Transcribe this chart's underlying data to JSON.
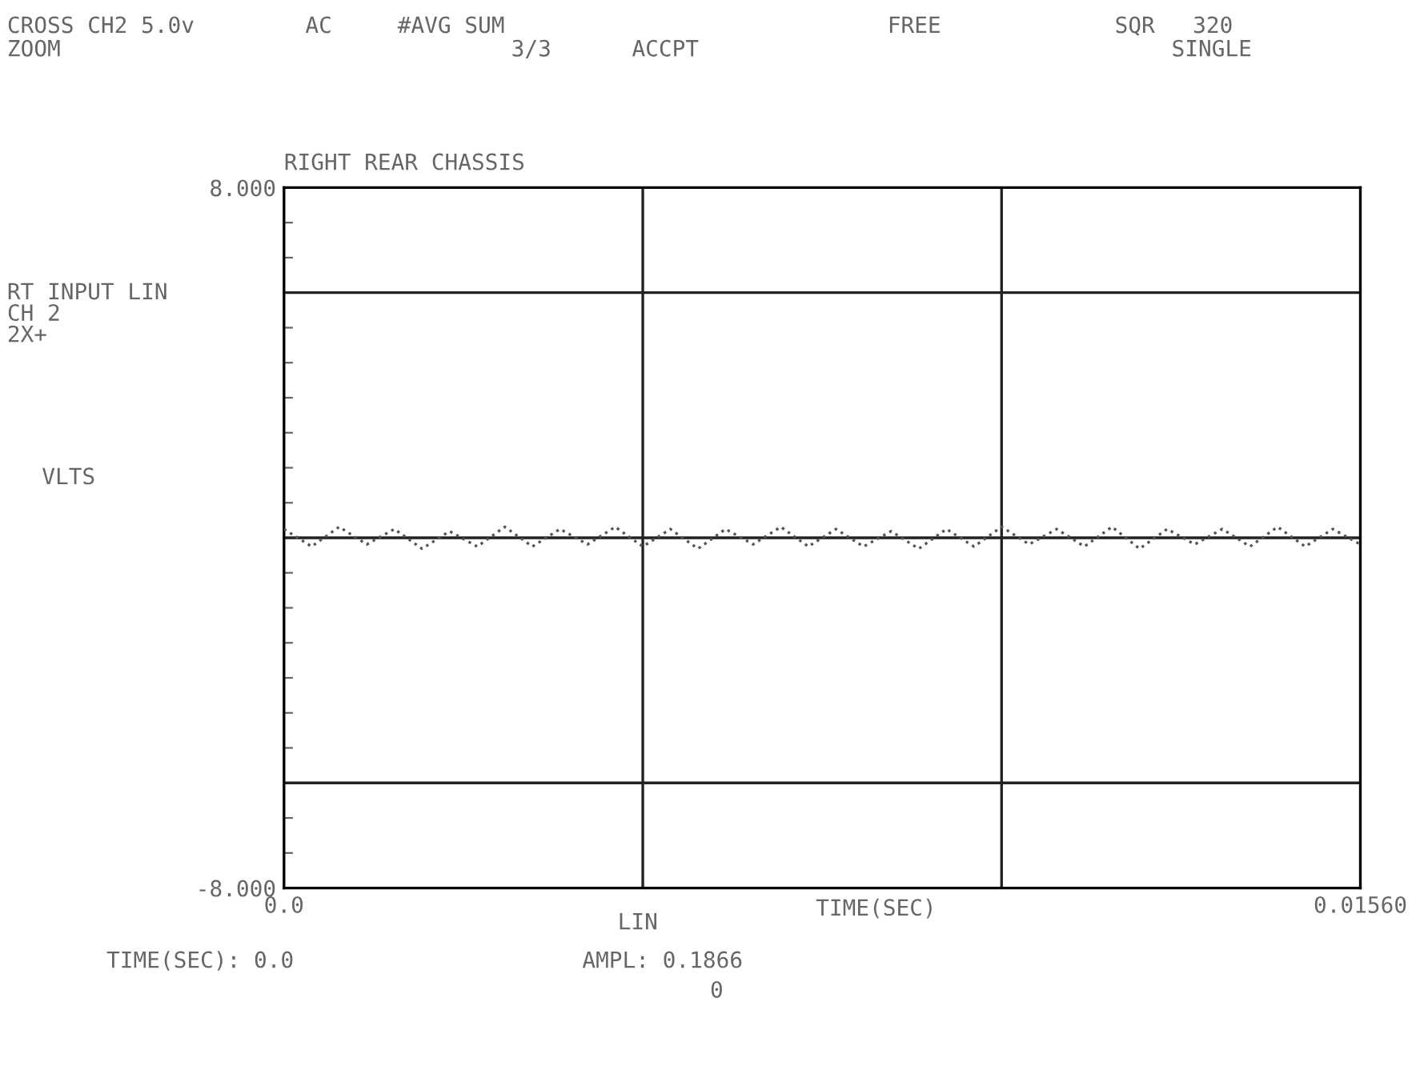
{
  "chart_data": {
    "type": "line",
    "title": "RIGHT REAR CHASSIS",
    "xlabel": "TIME(SEC)",
    "ylabel": "VLTS",
    "annotations": [
      "CROSS CH2 5.0v",
      "AC",
      "#AVG SUM",
      "3/3",
      "ACCPT",
      "FREE",
      "SQR",
      "320",
      "ZOOM",
      "SINGLE",
      "RT INPUT LIN",
      "CH 2",
      "2X+",
      "LIN",
      "TIME(SEC): 0.0",
      "AMPL: 0.1866",
      "0"
    ],
    "x": [
      0,
      0.0004,
      0.0008,
      0.0012,
      0.0016,
      0.002,
      0.0024,
      0.0028,
      0.0032,
      0.0036,
      0.004,
      0.0044,
      0.0048,
      0.0052,
      0.0056,
      0.006,
      0.0064,
      0.0068,
      0.0072,
      0.0076,
      0.008,
      0.0084,
      0.0088,
      0.0092,
      0.0096,
      0.01,
      0.0104,
      0.0108,
      0.0112,
      0.0116,
      0.012,
      0.0124,
      0.0128,
      0.0132,
      0.0136,
      0.014,
      0.0144,
      0.0148,
      0.0152,
      0.0156
    ],
    "series": [
      {
        "color": "#555555",
        "values": [
          0.2,
          -0.2,
          0.25,
          -0.15,
          0.2,
          -0.25,
          0.15,
          -0.2,
          0.25,
          -0.2,
          0.2,
          -0.15,
          0.25,
          -0.2,
          0.2,
          -0.25,
          0.2,
          -0.15,
          0.25,
          -0.2,
          0.2,
          -0.2,
          0.15,
          -0.25,
          0.2,
          -0.2,
          0.25,
          -0.15,
          0.2,
          -0.2,
          0.25,
          -0.25,
          0.2,
          -0.15,
          0.2,
          -0.2,
          0.25,
          -0.2,
          0.2,
          -0.15
        ]
      }
    ],
    "xlim": [
      0,
      0.0156
    ],
    "ylim": [
      -8,
      8
    ],
    "xticks": [
      {
        "value": 0,
        "label": "0.0"
      },
      {
        "value": 0.0052,
        "label": null
      },
      {
        "value": 0.0104,
        "label": null
      },
      {
        "value": 0.0156,
        "label": "0.01560"
      }
    ],
    "yticks": [
      {
        "value": -8,
        "label": "-8.000"
      },
      {
        "value": -7.2,
        "label": null
      },
      {
        "value": -6.4,
        "label": null
      },
      {
        "value": -5.6,
        "label": null
      },
      {
        "value": -4.8,
        "label": null
      },
      {
        "value": -4,
        "label": null
      },
      {
        "value": -3.2,
        "label": null
      },
      {
        "value": -2.4,
        "label": null
      },
      {
        "value": -1.6,
        "label": null
      },
      {
        "value": -0.8,
        "label": null
      },
      {
        "value": 0,
        "label": null
      },
      {
        "value": 0.8,
        "label": null
      },
      {
        "value": 1.6,
        "label": null
      },
      {
        "value": 2.4,
        "label": null
      },
      {
        "value": 3.2,
        "label": null
      },
      {
        "value": 4,
        "label": null
      },
      {
        "value": 4.8,
        "label": null
      },
      {
        "value": 5.6,
        "label": null
      },
      {
        "value": 6.4,
        "label": null
      },
      {
        "value": 7.2,
        "label": null
      },
      {
        "value": 8,
        "label": "8.000"
      }
    ],
    "ref_lines": [
      {
        "axis": "y",
        "value": 5.6,
        "color": "#222222"
      },
      {
        "axis": "y",
        "value": 0,
        "color": "#222222"
      },
      {
        "axis": "y",
        "value": -5.6,
        "color": "#222222"
      },
      {
        "axis": "x",
        "value": 0.0052,
        "color": "#222222"
      },
      {
        "axis": "x",
        "value": 0.0104,
        "color": "#222222"
      }
    ],
    "line_style": "dotted",
    "marker": "none",
    "grid": false,
    "legend": false
  }
}
